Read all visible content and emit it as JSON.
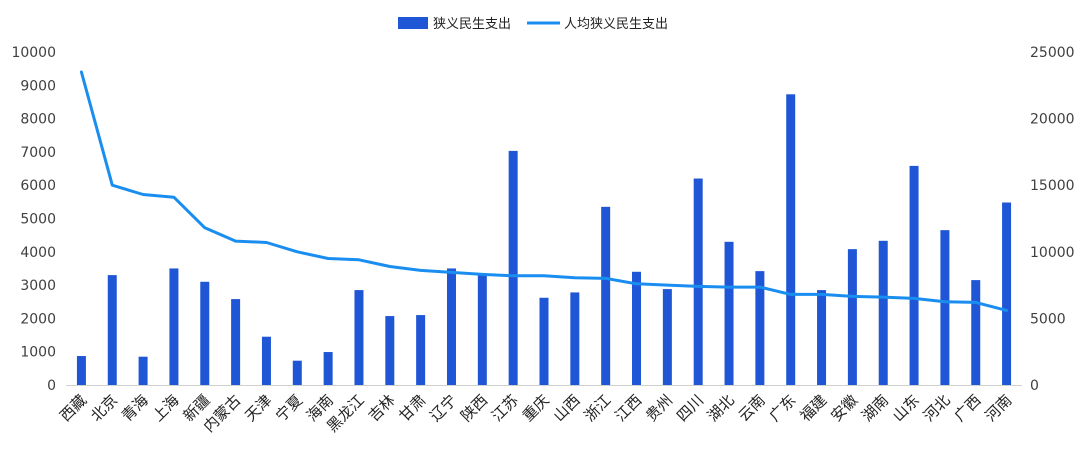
{
  "chart_data": {
    "type": "bar+line",
    "categories": [
      "西藏",
      "北京",
      "青海",
      "上海",
      "新疆",
      "内蒙古",
      "天津",
      "宁夏",
      "海南",
      "黑龙江",
      "吉林",
      "甘肃",
      "辽宁",
      "陕西",
      "江苏",
      "重庆",
      "山西",
      "浙江",
      "江西",
      "贵州",
      "四川",
      "湖北",
      "云南",
      "广东",
      "福建",
      "安徽",
      "湖南",
      "山东",
      "河北",
      "广西",
      "河南"
    ],
    "series": [
      {
        "name": "狭义民生支出",
        "type": "bar",
        "axis": "left",
        "color": "#1f56d6",
        "values": [
          870,
          3300,
          850,
          3500,
          3100,
          2580,
          1450,
          730,
          990,
          2850,
          2070,
          2100,
          3500,
          3300,
          7030,
          2620,
          2780,
          5350,
          3400,
          2880,
          6200,
          4300,
          3420,
          8730,
          2850,
          4080,
          4330,
          6580,
          4650,
          3150,
          5480
        ]
      },
      {
        "name": "人均狭义民生支出",
        "type": "line",
        "axis": "right",
        "color": "#1a8ef0",
        "values": [
          23500,
          15000,
          14300,
          14100,
          11800,
          10800,
          10700,
          10000,
          9500,
          9400,
          8900,
          8600,
          8450,
          8300,
          8200,
          8200,
          8050,
          8000,
          7600,
          7500,
          7400,
          7350,
          7350,
          6800,
          6800,
          6650,
          6600,
          6500,
          6250,
          6200,
          5600
        ]
      }
    ],
    "y_left": {
      "min": 0,
      "max": 10000,
      "step": 1000
    },
    "y_right": {
      "min": 0,
      "max": 25000,
      "step": 5000
    },
    "legend_position": "top-center",
    "grid": false
  }
}
